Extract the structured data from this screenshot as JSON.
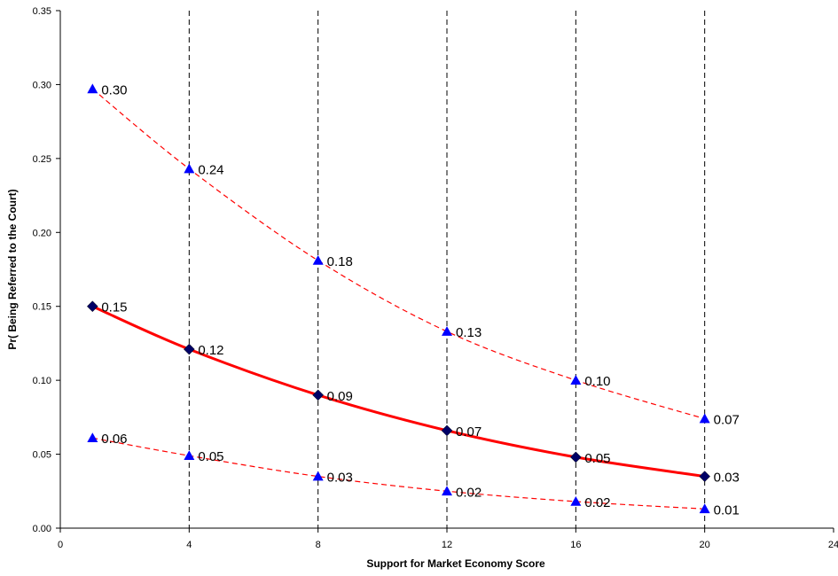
{
  "chart_data": {
    "type": "line",
    "xlabel": "Support for Market Economy Score",
    "ylabel": "Pr( Being Referred to the Court)",
    "xlim": [
      0,
      24
    ],
    "ylim": [
      0,
      0.35
    ],
    "x_ticks": [
      "0",
      "4",
      "8",
      "12",
      "16",
      "20",
      "24"
    ],
    "y_ticks": [
      "0.00",
      "0.05",
      "0.10",
      "0.15",
      "0.20",
      "0.25",
      "0.30",
      "0.35"
    ],
    "vertical_reference_lines": [
      4,
      8,
      12,
      16,
      20
    ],
    "series": [
      {
        "role": "upper",
        "style": "dashed",
        "line_color": "#ff0000",
        "marker": "triangle",
        "marker_color": "#0000ff",
        "x": [
          1,
          4,
          8,
          12,
          16,
          20
        ],
        "values": [
          0.297,
          0.243,
          0.181,
          0.133,
          0.1,
          0.074
        ],
        "labels": [
          "0.30",
          "0.24",
          "0.18",
          "0.13",
          "0.10",
          "0.07"
        ]
      },
      {
        "role": "estimate",
        "style": "solid",
        "line_color": "#ff0000",
        "marker": "diamond",
        "marker_color": "#000066",
        "x": [
          1,
          4,
          8,
          12,
          16,
          20
        ],
        "values": [
          0.15,
          0.121,
          0.09,
          0.066,
          0.048,
          0.035
        ],
        "labels": [
          "0.15",
          "0.12",
          "0.09",
          "0.07",
          "0.05",
          "0.03"
        ]
      },
      {
        "role": "lower",
        "style": "dashed",
        "line_color": "#ff0000",
        "marker": "triangle",
        "marker_color": "#0000ff",
        "x": [
          1,
          4,
          8,
          12,
          16,
          20
        ],
        "values": [
          0.061,
          0.049,
          0.035,
          0.025,
          0.018,
          0.013
        ],
        "labels": [
          "0.06",
          "0.05",
          "0.03",
          "0.02",
          "0.02",
          "0.01"
        ]
      }
    ]
  }
}
